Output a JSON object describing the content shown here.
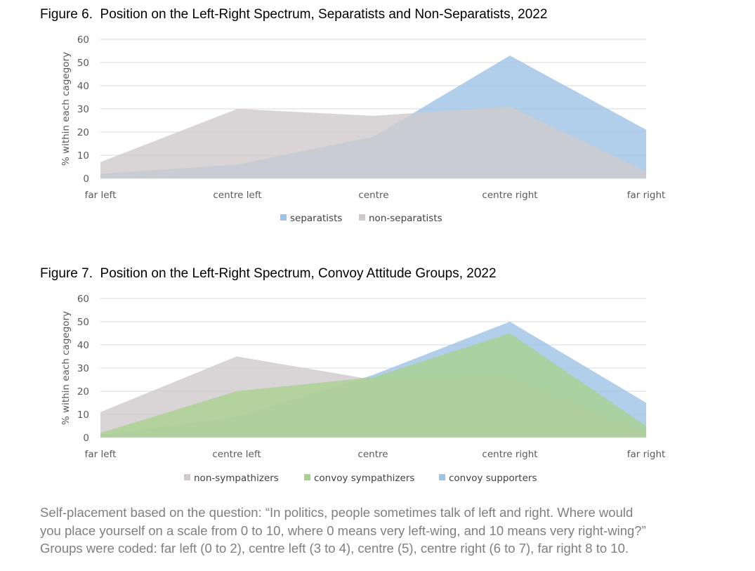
{
  "chart_data": [
    {
      "type": "area",
      "title": "Figure 6.  Position on the Left-Right Spectrum, Separatists and Non-Separatists, 2022",
      "ylabel": "% within each cagegory",
      "xlabel": "",
      "ylim": [
        0,
        60
      ],
      "yticks": [
        0,
        10,
        20,
        30,
        40,
        50,
        60
      ],
      "grid": true,
      "legend_position": "bottom",
      "categories": [
        "far left",
        "centre left",
        "centre",
        "centre right",
        "far right"
      ],
      "series": [
        {
          "name": "separatists",
          "values": [
            2,
            6,
            18,
            53,
            21
          ],
          "color": "#9dc3e6"
        },
        {
          "name": "non-separatists",
          "values": [
            7,
            30,
            27,
            31,
            3
          ],
          "color": "#d0cacd"
        }
      ],
      "draw_order": [
        "separatists",
        "non-separatists"
      ]
    },
    {
      "type": "area",
      "title": "Figure 7.  Position on the Left-Right Spectrum, Convoy Attitude Groups, 2022",
      "ylabel": "% within each cagegory",
      "xlabel": "",
      "ylim": [
        0,
        60
      ],
      "yticks": [
        0,
        10,
        20,
        30,
        40,
        50,
        60
      ],
      "grid": true,
      "legend_position": "bottom",
      "categories": [
        "far left",
        "centre left",
        "centre",
        "centre right",
        "far right"
      ],
      "series": [
        {
          "name": "non-sympathizers",
          "values": [
            11,
            35,
            25,
            26,
            2
          ],
          "color": "#d0cacd"
        },
        {
          "name": "convoy sympathizers",
          "values": [
            2,
            20,
            26,
            45,
            5
          ],
          "color": "#a9d18e"
        },
        {
          "name": "convoy supporters",
          "values": [
            1,
            9,
            27,
            50,
            15
          ],
          "color": "#9dc3e6"
        }
      ],
      "draw_order": [
        "convoy supporters",
        "non-sympathizers",
        "convoy sympathizers"
      ]
    }
  ],
  "note": {
    "line1": "Self-placement based on the question: “In politics, people sometimes talk of left and right. Where would",
    "line2": "you place yourself on a scale from 0 to 10, where 0 means very left-wing, and 10 means very right-wing?”",
    "line3": "Groups were coded: far left (0 to 2), centre left (3 to 4), centre (5), centre right (6 to 7), far right 8 to 10."
  }
}
